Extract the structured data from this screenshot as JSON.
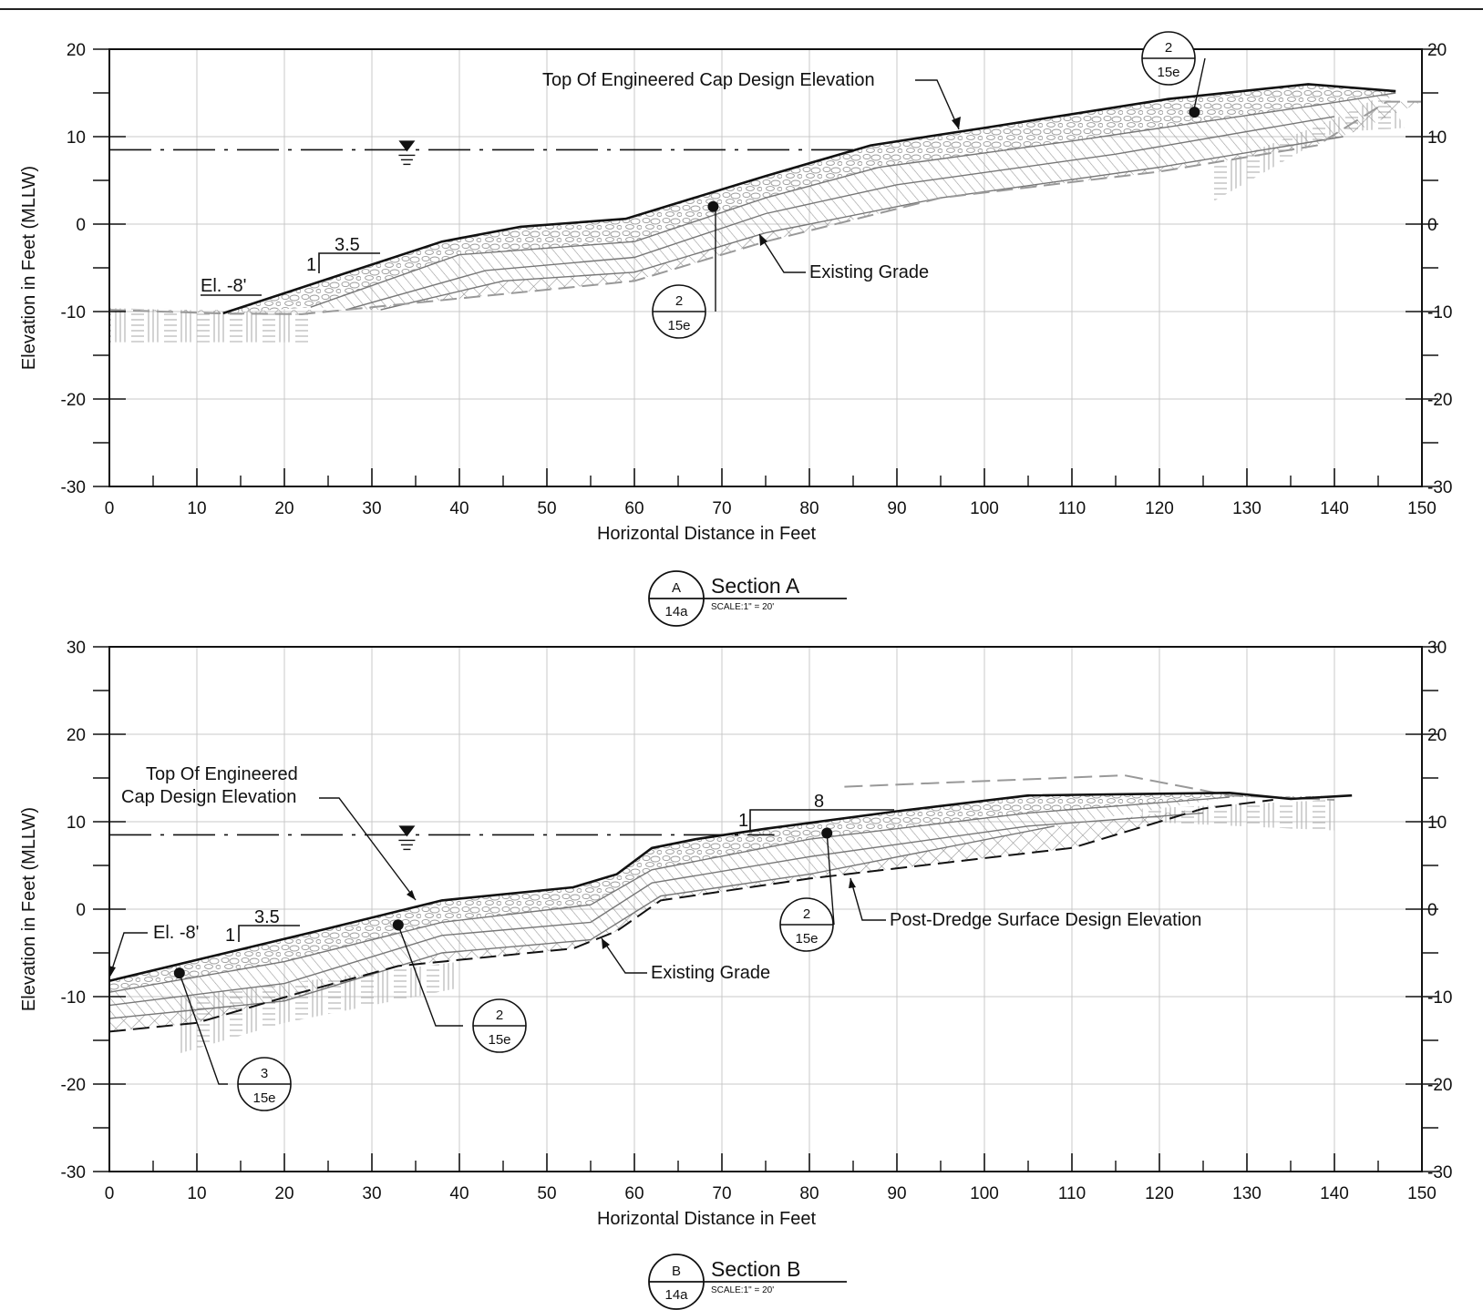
{
  "sections": [
    {
      "id": "A",
      "y_range": [
        -30,
        20
      ],
      "y_ticks": [
        20,
        10,
        0,
        -10,
        -20,
        -30
      ],
      "x_ticks": [
        0,
        10,
        20,
        30,
        40,
        50,
        60,
        70,
        80,
        90,
        100,
        110,
        120,
        130,
        140,
        150
      ],
      "x_range": [
        0,
        150
      ],
      "ylabel": "Elevation in Feet (MLLW)",
      "xlabel": "Horizontal Distance in Feet",
      "water_level": 8.5,
      "cap_top": [
        [
          13,
          -10.2
        ],
        [
          38,
          -2
        ],
        [
          47,
          -0.3
        ],
        [
          59,
          0.6
        ],
        [
          75,
          5.5
        ],
        [
          87,
          9
        ],
        [
          100,
          11
        ],
        [
          121,
          14.3
        ],
        [
          137,
          16
        ],
        [
          147,
          15.2
        ]
      ],
      "layer_1": [
        [
          23,
          -9.5
        ],
        [
          40,
          -3.5
        ],
        [
          60,
          -2
        ],
        [
          75,
          3
        ],
        [
          88,
          6.5
        ],
        [
          110,
          9.5
        ],
        [
          138,
          13.6
        ],
        [
          147,
          15
        ]
      ],
      "layer_2": [
        [
          27,
          -9.8
        ],
        [
          43,
          -5.3
        ],
        [
          60,
          -3.8
        ],
        [
          75,
          1.2
        ],
        [
          90,
          4.5
        ],
        [
          115,
          8
        ],
        [
          140,
          12.3
        ]
      ],
      "layer_3": [
        [
          31,
          -9.8
        ],
        [
          45,
          -6.5
        ],
        [
          60,
          -5.5
        ],
        [
          75,
          -1
        ],
        [
          95,
          3
        ],
        [
          120,
          6.5
        ],
        [
          141,
          10
        ]
      ],
      "existing_grade": [
        [
          0,
          -9.8
        ],
        [
          12,
          -10.2
        ],
        [
          22,
          -10.3
        ],
        [
          40,
          -8.5
        ],
        [
          60,
          -6.5
        ],
        [
          75,
          -2
        ],
        [
          95,
          3
        ],
        [
          120,
          6
        ],
        [
          138,
          9
        ],
        [
          146,
          14
        ],
        [
          150,
          14
        ]
      ],
      "annotations": {
        "cap_label": "Top Of Engineered  Cap Design Elevation",
        "existing_label": "Existing Grade",
        "elevation": "El. -8'",
        "slope_run": "3.5",
        "slope_rise": "1"
      },
      "callouts": [
        {
          "top": "2",
          "bottom": "15e",
          "dot": [
            124,
            12.8
          ]
        },
        {
          "top": "2",
          "bottom": "15e",
          "dot": [
            69,
            2
          ]
        }
      ],
      "title_bubble": {
        "top": "A",
        "bottom": "14a"
      },
      "title": "Section A",
      "scale": "SCALE:1\" = 20'"
    },
    {
      "id": "B",
      "y_range": [
        -30,
        30
      ],
      "y_ticks": [
        30,
        20,
        10,
        0,
        -10,
        -20,
        -30
      ],
      "x_ticks": [
        0,
        10,
        20,
        30,
        40,
        50,
        60,
        70,
        80,
        90,
        100,
        110,
        120,
        130,
        140,
        150
      ],
      "x_range": [
        0,
        150
      ],
      "ylabel": "Elevation in Feet (MLLW)",
      "xlabel": "Horizontal Distance in Feet",
      "water_level": 8.5,
      "cap_top": [
        [
          0,
          -8.2
        ],
        [
          25,
          -2.2
        ],
        [
          38,
          1
        ],
        [
          53,
          2.5
        ],
        [
          58,
          4
        ],
        [
          62,
          7
        ],
        [
          67,
          8
        ],
        [
          75,
          9.2
        ],
        [
          90,
          11.2
        ],
        [
          105,
          13
        ],
        [
          128,
          13.3
        ],
        [
          135,
          12.6
        ],
        [
          142,
          13
        ]
      ],
      "layer_1": [
        [
          0,
          -9.5
        ],
        [
          20,
          -6
        ],
        [
          38,
          -1.5
        ],
        [
          55,
          0.5
        ],
        [
          62,
          4.5
        ],
        [
          80,
          8
        ],
        [
          105,
          11
        ],
        [
          128,
          12.8
        ]
      ],
      "layer_2": [
        [
          0,
          -11
        ],
        [
          20,
          -8.5
        ],
        [
          38,
          -3
        ],
        [
          55,
          -1.5
        ],
        [
          62,
          3
        ],
        [
          80,
          6
        ],
        [
          105,
          9.5
        ],
        [
          125,
          11
        ]
      ],
      "layer_3": [
        [
          0,
          -12.5
        ],
        [
          20,
          -10.5
        ],
        [
          38,
          -5
        ],
        [
          55,
          -3.5
        ],
        [
          63,
          1.5
        ],
        [
          80,
          4
        ],
        [
          108,
          9.5
        ]
      ],
      "existing_grade": [
        [
          0,
          -14
        ],
        [
          10,
          -13
        ],
        [
          22,
          -9.5
        ],
        [
          33,
          -6.5
        ],
        [
          53,
          -4.5
        ],
        [
          58,
          -2.5
        ],
        [
          63,
          1
        ],
        [
          80,
          3.5
        ],
        [
          110,
          7
        ],
        [
          125,
          11.5
        ],
        [
          133,
          12.5
        ]
      ],
      "dredge_surface": [
        [
          84,
          14
        ],
        [
          116,
          15.3
        ],
        [
          128,
          13
        ],
        [
          140,
          12.5
        ]
      ],
      "annotations": {
        "cap_label_line1": "Top Of Engineered",
        "cap_label_line2": "Cap Design Elevation",
        "existing_label": "Existing Grade",
        "dredge_label": "Post-Dredge Surface Design Elevation",
        "elevation": "El. -8'",
        "slope_run_1": "3.5",
        "slope_rise_1": "1",
        "slope_run_2": "8",
        "slope_rise_2": "1"
      },
      "callouts": [
        {
          "top": "2",
          "bottom": "15e",
          "dot": [
            33,
            -1.8
          ]
        },
        {
          "top": "3",
          "bottom": "15e",
          "dot": [
            8,
            -7.3
          ]
        },
        {
          "top": "2",
          "bottom": "15e",
          "dot": [
            82,
            8.7
          ]
        }
      ],
      "title_bubble": {
        "top": "B",
        "bottom": "14a"
      },
      "title": "Section B",
      "scale": "SCALE:1\" = 20'"
    }
  ]
}
